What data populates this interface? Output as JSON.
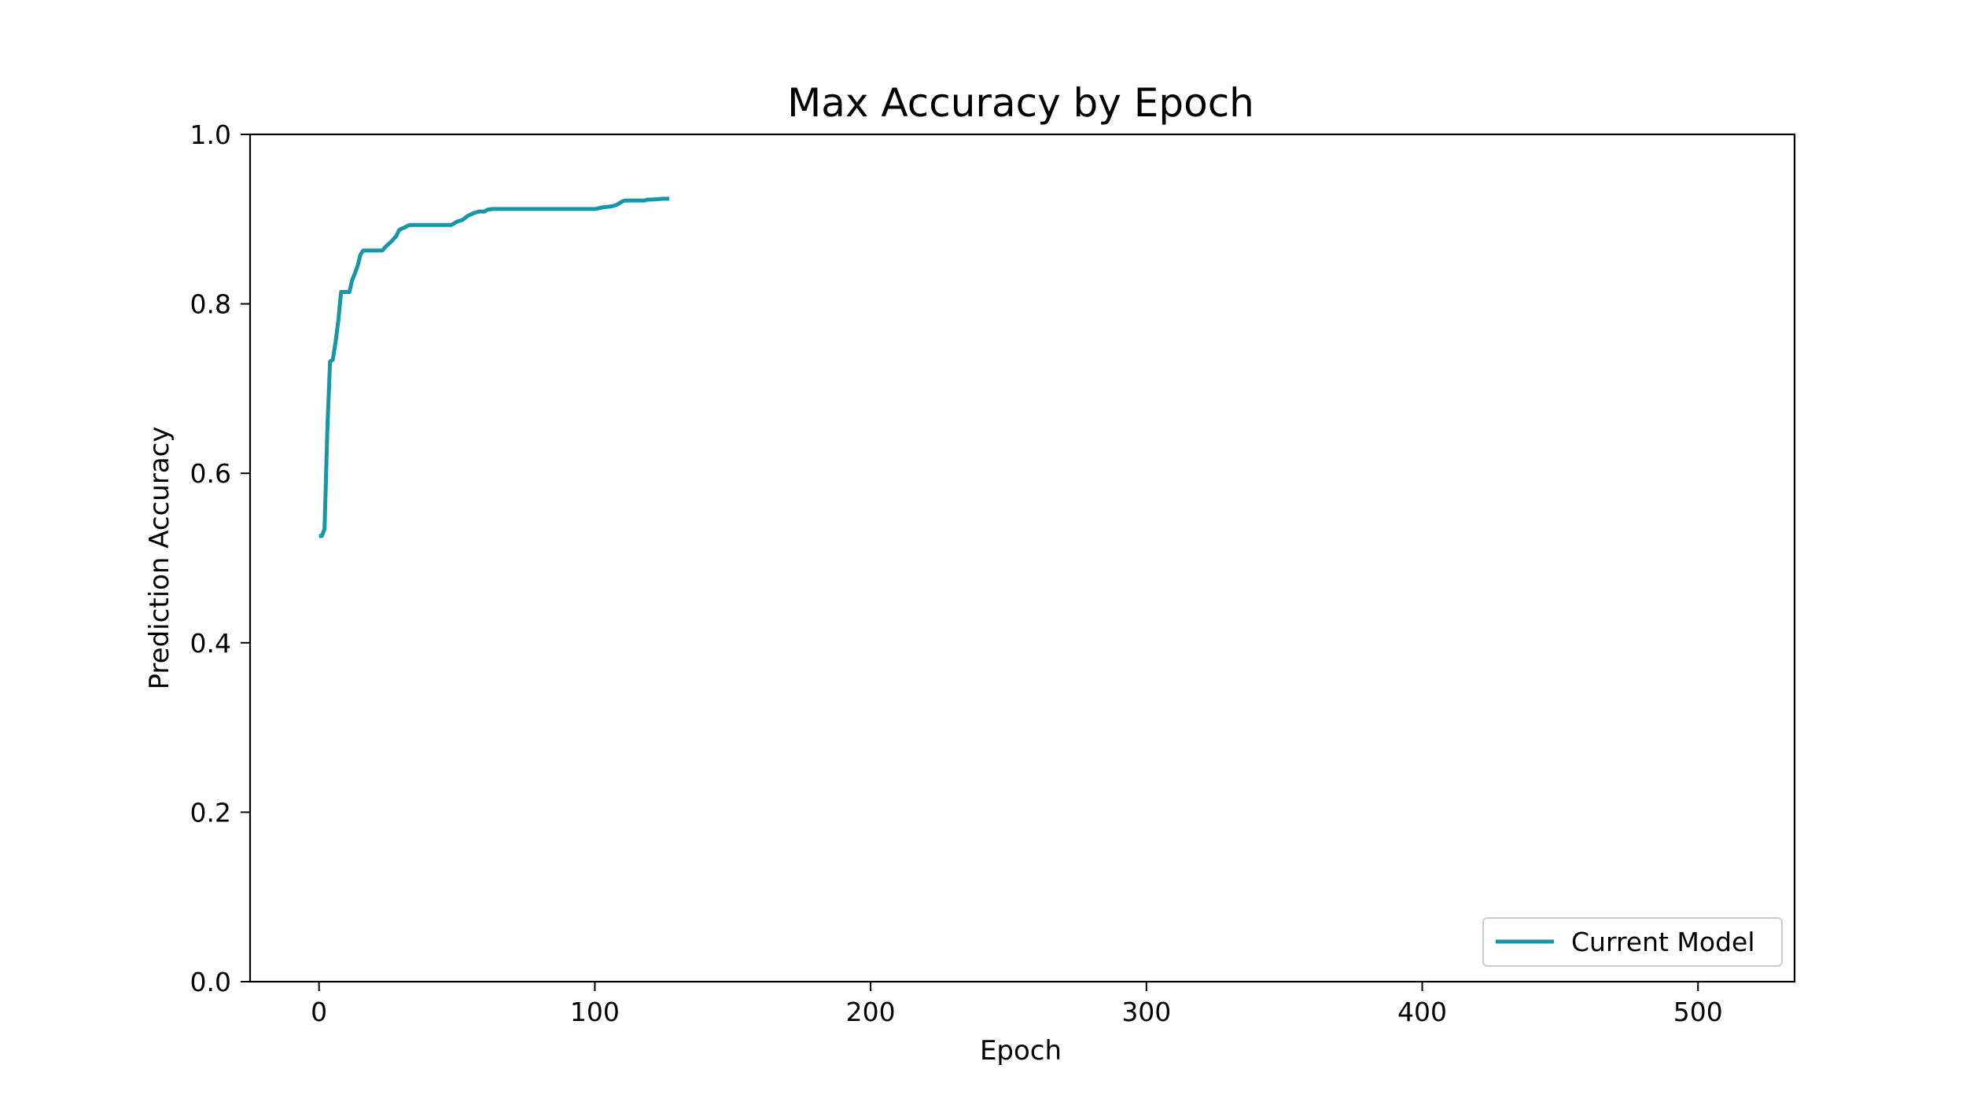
{
  "chart_data": {
    "type": "line",
    "title": "Max Accuracy by Epoch",
    "xlabel": "Epoch",
    "ylabel": "Prediction Accuracy",
    "xlim": [
      -25,
      535
    ],
    "ylim": [
      0.0,
      1.0
    ],
    "xticks": [
      0,
      100,
      200,
      300,
      400,
      500
    ],
    "xtick_labels": [
      "0",
      "100",
      "200",
      "300",
      "400",
      "500"
    ],
    "yticks": [
      0.0,
      0.2,
      0.4,
      0.6,
      0.8,
      1.0
    ],
    "ytick_labels": [
      "0.0",
      "0.2",
      "0.4",
      "0.6",
      "0.8",
      "1.0"
    ],
    "grid": false,
    "legend": {
      "position": "lower-right"
    },
    "series": [
      {
        "name": "Current Model",
        "color": "#1696a6",
        "x": [
          0,
          1,
          2,
          3,
          4,
          5,
          6,
          7,
          8,
          10,
          11,
          12,
          13,
          14,
          15,
          16,
          20,
          23,
          24,
          25,
          26,
          28,
          29,
          30,
          31,
          32,
          33,
          48,
          50,
          52,
          54,
          56,
          58,
          60,
          61,
          63,
          65,
          100,
          103,
          106,
          108,
          109,
          110,
          111,
          112,
          116,
          118,
          119,
          120,
          125,
          127
        ],
        "y": [
          0.526,
          0.526,
          0.534,
          0.65,
          0.732,
          0.734,
          0.755,
          0.78,
          0.814,
          0.814,
          0.814,
          0.828,
          0.836,
          0.845,
          0.858,
          0.863,
          0.863,
          0.863,
          0.867,
          0.87,
          0.873,
          0.88,
          0.887,
          0.889,
          0.89,
          0.892,
          0.893,
          0.893,
          0.897,
          0.899,
          0.904,
          0.907,
          0.909,
          0.909,
          0.911,
          0.912,
          0.912,
          0.912,
          0.914,
          0.915,
          0.917,
          0.919,
          0.921,
          0.922,
          0.922,
          0.922,
          0.922,
          0.923,
          0.923,
          0.924,
          0.924
        ]
      }
    ]
  }
}
